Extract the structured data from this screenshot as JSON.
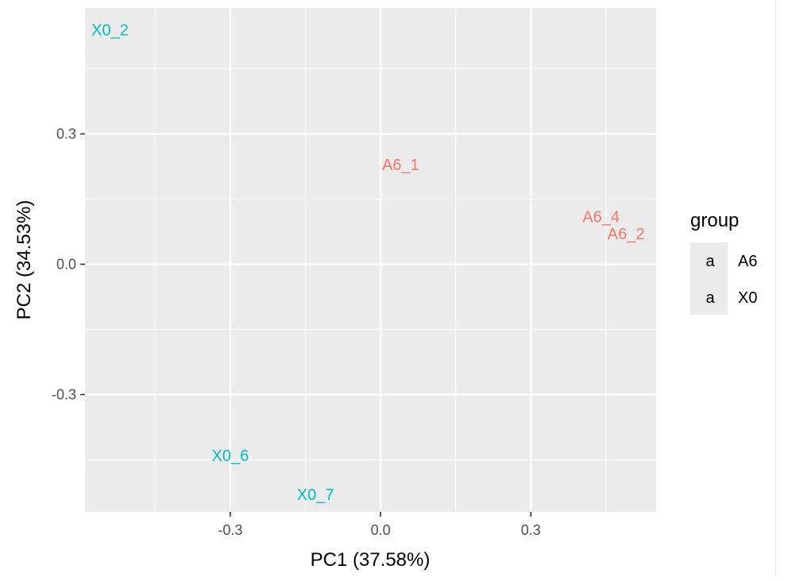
{
  "chart_data": {
    "type": "scatter",
    "title": "",
    "xlabel": "PC1 (37.58%)",
    "ylabel": "PC2 (34.53%)",
    "xlim": [
      -0.59,
      0.55
    ],
    "ylim": [
      -0.57,
      0.59
    ],
    "x_ticks": [
      -0.3,
      0.0,
      0.3
    ],
    "x_tick_labels": [
      "-0.3",
      "0.0",
      "0.3"
    ],
    "y_ticks": [
      -0.3,
      0.0,
      0.3
    ],
    "y_tick_labels": [
      "-0.3",
      "0.0",
      "0.3"
    ],
    "grid": true,
    "legend": {
      "title": "group",
      "placement": "right",
      "key_glyph": "a",
      "entries": [
        {
          "label": "A6",
          "color": "#F8766D"
        },
        {
          "label": "X0",
          "color": "#00BFC4"
        }
      ]
    },
    "points": [
      {
        "label": "X0_2",
        "group": "X0",
        "x": -0.54,
        "y": 0.54
      },
      {
        "label": "A6_1",
        "group": "A6",
        "x": 0.04,
        "y": 0.23
      },
      {
        "label": "A6_4",
        "group": "A6",
        "x": 0.44,
        "y": 0.11
      },
      {
        "label": "A6_2",
        "group": "A6",
        "x": 0.49,
        "y": 0.07
      },
      {
        "label": "X0_6",
        "group": "X0",
        "x": -0.3,
        "y": -0.44
      },
      {
        "label": "X0_7",
        "group": "X0",
        "x": -0.13,
        "y": -0.53
      }
    ]
  }
}
